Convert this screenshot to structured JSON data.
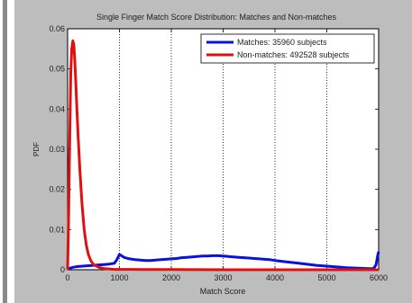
{
  "colors": {
    "figure_bg": "#bdbdbd",
    "axes_bg": "#ffffff",
    "matches": "#0a10e0",
    "non_matches": "#e01010",
    "grid": "#000000"
  },
  "chart_data": {
    "type": "line",
    "title": "Single Finger Match Score Distribution: Matches and Non-matches",
    "xlabel": "Match Score",
    "ylabel": "PDF",
    "xlim": [
      0,
      6000
    ],
    "ylim": [
      0,
      0.06
    ],
    "xticks": [
      0,
      1000,
      2000,
      3000,
      4000,
      5000,
      6000
    ],
    "xtick_labels": [
      "0",
      "1000",
      "2000",
      "3000",
      "4000",
      "5000",
      "6000"
    ],
    "yticks": [
      0,
      0.01,
      0.02,
      0.03,
      0.04,
      0.05,
      0.06
    ],
    "ytick_labels": [
      "0",
      "0.01",
      "0.02",
      "0.03",
      "0.04",
      "0.05",
      "0.06"
    ],
    "grid": "x-dotted",
    "legend_position": "top-right",
    "series": [
      {
        "name": "Matches: 35960 subjects",
        "color": "#0a10e0",
        "x": [
          0,
          100,
          200,
          300,
          400,
          500,
          600,
          700,
          800,
          900,
          950,
          1000,
          1050,
          1100,
          1200,
          1300,
          1400,
          1500,
          1600,
          1700,
          1800,
          1900,
          2000,
          2100,
          2200,
          2300,
          2400,
          2500,
          2600,
          2700,
          2800,
          2900,
          3000,
          3100,
          3200,
          3300,
          3400,
          3500,
          3600,
          3700,
          3800,
          3900,
          4000,
          4200,
          4400,
          4600,
          4800,
          5000,
          5200,
          5400,
          5600,
          5800,
          5900,
          5950,
          5980,
          6000
        ],
        "y": [
          0.0002,
          0.0006,
          0.0008,
          0.0009,
          0.001,
          0.0011,
          0.0012,
          0.0013,
          0.0014,
          0.0016,
          0.0025,
          0.0038,
          0.0034,
          0.003,
          0.0027,
          0.0025,
          0.0024,
          0.0023,
          0.0023,
          0.0024,
          0.0025,
          0.0026,
          0.0027,
          0.0028,
          0.003,
          0.0031,
          0.0032,
          0.0033,
          0.0034,
          0.0034,
          0.0035,
          0.0035,
          0.0034,
          0.0033,
          0.0032,
          0.0031,
          0.003,
          0.0029,
          0.0028,
          0.0027,
          0.0026,
          0.0025,
          0.0023,
          0.002,
          0.0017,
          0.0014,
          0.0011,
          0.0009,
          0.0007,
          0.0005,
          0.0004,
          0.0003,
          0.0003,
          0.0012,
          0.0035,
          0.0045
        ]
      },
      {
        "name": "Non-matches: 492528 subjects",
        "color": "#e01010",
        "x": [
          0,
          20,
          40,
          60,
          80,
          100,
          120,
          140,
          160,
          180,
          200,
          240,
          280,
          320,
          360,
          400,
          450,
          500,
          600,
          700,
          800,
          900,
          1000,
          1200,
          1500,
          2000,
          3000,
          4000,
          5000,
          6000
        ],
        "y": [
          0.0,
          0.013,
          0.032,
          0.049,
          0.055,
          0.057,
          0.056,
          0.052,
          0.046,
          0.04,
          0.034,
          0.024,
          0.016,
          0.01,
          0.0062,
          0.0038,
          0.0022,
          0.0013,
          0.0006,
          0.0003,
          0.0002,
          0.0001,
          0.0001,
          0.0001,
          5e-05,
          5e-05,
          0.0,
          0.0,
          0.0,
          0.0
        ]
      }
    ]
  }
}
